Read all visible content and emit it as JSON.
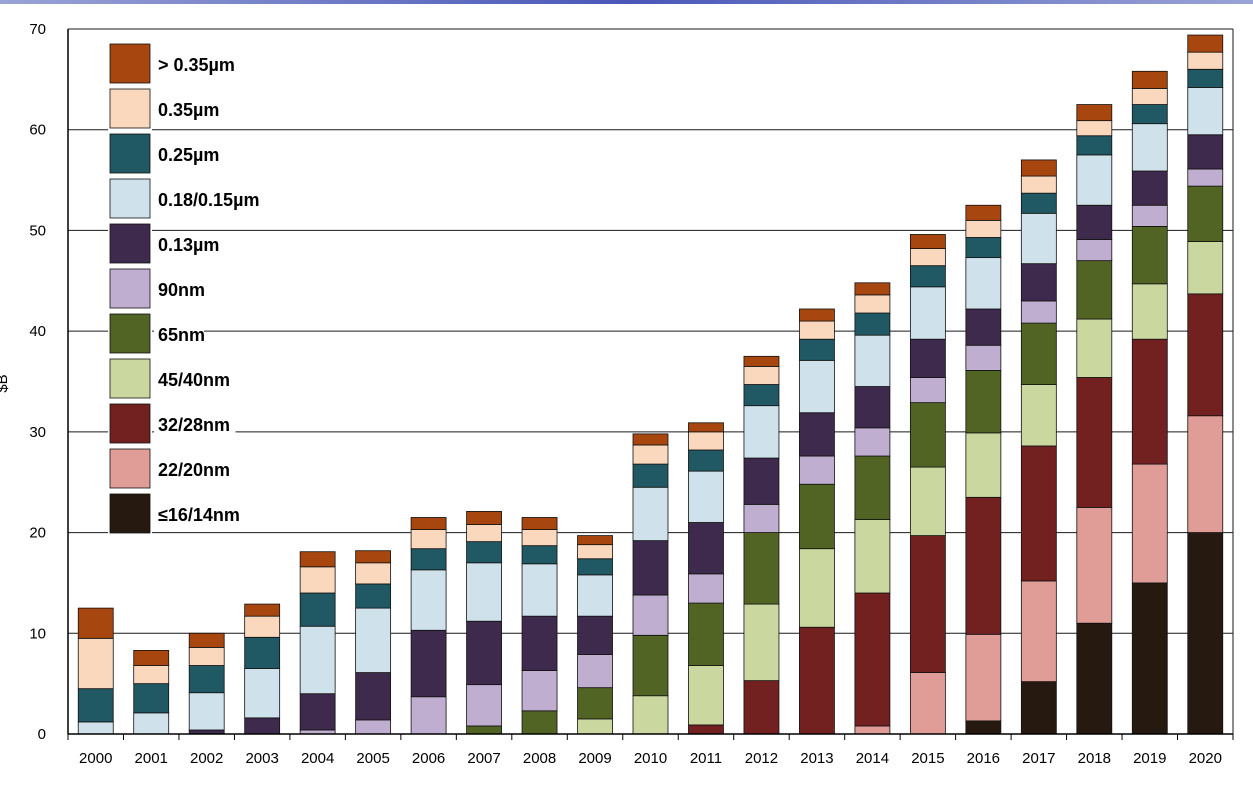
{
  "chart_data": {
    "type": "bar",
    "stacked": true,
    "title": "",
    "xlabel": "",
    "ylabel": "$B",
    "ylim": [
      0,
      70
    ],
    "yticks": [
      0,
      10,
      20,
      30,
      40,
      50,
      60,
      70
    ],
    "grid": true,
    "legend_position": "top-left",
    "categories": [
      "2000",
      "2001",
      "2002",
      "2003",
      "2004",
      "2005",
      "2006",
      "2007",
      "2008",
      "2009",
      "2010",
      "2011",
      "2012",
      "2013",
      "2014",
      "2015",
      "2016",
      "2017",
      "2018",
      "2019",
      "2020"
    ],
    "series": [
      {
        "name": "≤16/14nm",
        "color": "#261a10",
        "values": [
          0,
          0,
          0,
          0,
          0,
          0,
          0,
          0,
          0,
          0,
          0,
          0,
          0,
          0,
          0,
          0,
          1.3,
          5.2,
          11,
          15,
          20
        ]
      },
      {
        "name": "22/20nm",
        "color": "#e09c96",
        "values": [
          0,
          0,
          0,
          0,
          0,
          0,
          0,
          0,
          0,
          0,
          0,
          0,
          0,
          0,
          0.8,
          6.1,
          8.6,
          10,
          11.5,
          11.8,
          11.6
        ]
      },
      {
        "name": "32/28nm",
        "color": "#722020",
        "values": [
          0,
          0,
          0,
          0,
          0,
          0,
          0,
          0,
          0,
          0,
          0,
          0.9,
          5.3,
          10.6,
          13.2,
          13.6,
          13.6,
          13.4,
          12.9,
          12.4,
          12.1
        ]
      },
      {
        "name": "45/40nm",
        "color": "#cad8a0",
        "values": [
          0,
          0,
          0,
          0,
          0,
          0,
          0,
          0,
          0,
          1.5,
          3.8,
          5.9,
          7.6,
          7.8,
          7.3,
          6.8,
          6.4,
          6.1,
          5.8,
          5.5,
          5.2
        ]
      },
      {
        "name": "65nm",
        "color": "#516423",
        "values": [
          0,
          0,
          0,
          0,
          0,
          0,
          0,
          0.8,
          2.3,
          3.1,
          6,
          6.2,
          7.1,
          6.4,
          6.3,
          6.4,
          6.2,
          6.1,
          5.8,
          5.7,
          5.5
        ]
      },
      {
        "name": "90nm",
        "color": "#c0aed0",
        "values": [
          0,
          0,
          0,
          0,
          0.4,
          1.4,
          3.7,
          4.1,
          4,
          3.3,
          4,
          2.9,
          2.8,
          2.8,
          2.8,
          2.5,
          2.5,
          2.2,
          2.1,
          2.1,
          1.7
        ]
      },
      {
        "name": "0.13µm",
        "color": "#3e2a4c",
        "values": [
          0,
          0,
          0.4,
          1.6,
          3.6,
          4.7,
          6.6,
          6.3,
          5.4,
          3.8,
          5.4,
          5.1,
          4.6,
          4.3,
          4.1,
          3.8,
          3.6,
          3.7,
          3.4,
          3.4,
          3.4
        ]
      },
      {
        "name": "0.18/0.15µm",
        "color": "#cfe2ec",
        "values": [
          1.2,
          2.1,
          3.7,
          4.9,
          6.7,
          6.4,
          6,
          5.8,
          5.2,
          4.1,
          5.3,
          5.1,
          5.2,
          5.2,
          5.1,
          5.2,
          5.1,
          5,
          5,
          4.7,
          4.7
        ]
      },
      {
        "name": "0.25µm",
        "color": "#205864",
        "values": [
          3.3,
          2.9,
          2.7,
          3.1,
          3.3,
          2.4,
          2.1,
          2.1,
          1.8,
          1.6,
          2.3,
          2.1,
          2.1,
          2.1,
          2.2,
          2.1,
          2,
          2,
          1.9,
          1.9,
          1.8
        ]
      },
      {
        "name": "0.35µm",
        "color": "#fad8bd",
        "values": [
          5,
          1.8,
          1.8,
          2.1,
          2.6,
          2.1,
          1.9,
          1.7,
          1.6,
          1.4,
          1.9,
          1.8,
          1.8,
          1.8,
          1.8,
          1.7,
          1.7,
          1.7,
          1.5,
          1.6,
          1.7
        ]
      },
      {
        "name": "> 0.35µm",
        "color": "#a8460f",
        "values": [
          3,
          1.5,
          1.4,
          1.2,
          1.5,
          1.2,
          1.2,
          1.3,
          1.2,
          0.9,
          1.1,
          0.9,
          1,
          1.2,
          1.2,
          1.4,
          1.5,
          1.6,
          1.6,
          1.7,
          1.7
        ]
      }
    ]
  }
}
